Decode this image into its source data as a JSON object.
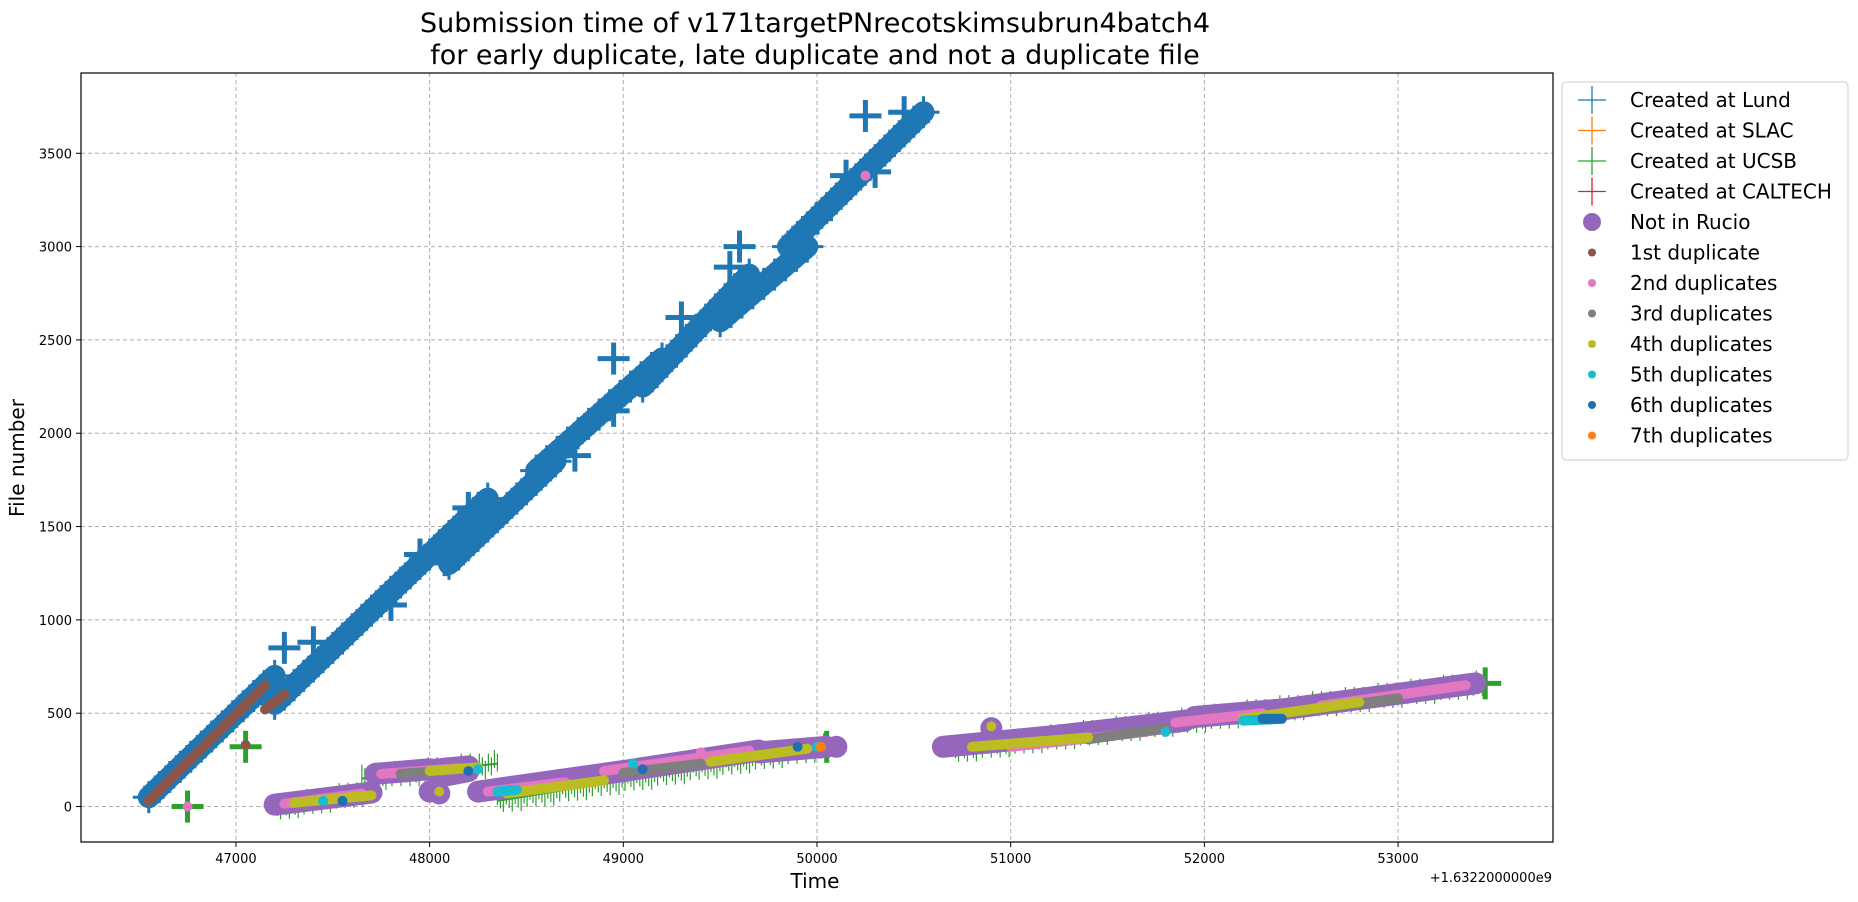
{
  "chart_data": {
    "type": "scatter",
    "title_line1": "Submission time of v171targetPNrecotskimsubrun4batch4",
    "title_line2": "for early duplicate, late duplicate and not a duplicate file",
    "xlabel": "Time",
    "ylabel": "File number",
    "x_offset_label": "+1.6322000000e9",
    "xlim": [
      46200,
      53800
    ],
    "ylim": [
      -190,
      3930
    ],
    "x_ticks": [
      47000,
      48000,
      49000,
      50000,
      51000,
      52000,
      53000
    ],
    "x_tick_labels": [
      "47000",
      "48000",
      "49000",
      "50000",
      "51000",
      "52000",
      "53000"
    ],
    "y_ticks": [
      0,
      500,
      1000,
      1500,
      2000,
      2500,
      3000,
      3500
    ],
    "y_tick_labels": [
      "0",
      "500",
      "1000",
      "1500",
      "2000",
      "2500",
      "3000",
      "3500"
    ],
    "grid": true,
    "legend_position": "outside-top-right",
    "legend": [
      {
        "label": "Created at Lund",
        "marker": "plus",
        "color": "#1f77b4"
      },
      {
        "label": "Created at SLAC",
        "marker": "plus",
        "color": "#ff7f0e"
      },
      {
        "label": "Created at UCSB",
        "marker": "plus",
        "color": "#2ca02c"
      },
      {
        "label": "Created at CALTECH",
        "marker": "plus",
        "color": "#d62728"
      },
      {
        "label": "Not in Rucio",
        "marker": "big-circle",
        "color": "#9467bd"
      },
      {
        "label": "1st duplicate",
        "marker": "circle",
        "color": "#8c564b"
      },
      {
        "label": "2nd duplicates",
        "marker": "circle",
        "color": "#e377c2"
      },
      {
        "label": "3rd duplicates",
        "marker": "circle",
        "color": "#7f7f7f"
      },
      {
        "label": "4th duplicates",
        "marker": "circle",
        "color": "#bcbd22"
      },
      {
        "label": "5th duplicates",
        "marker": "circle",
        "color": "#17becf"
      },
      {
        "label": "6th duplicates",
        "marker": "circle",
        "color": "#1f6fb4"
      },
      {
        "label": "7th duplicates",
        "marker": "circle",
        "color": "#ff7f0e"
      }
    ],
    "series": [
      {
        "name": "Created at Lund",
        "marker": "plus",
        "color": "#1f77b4",
        "segments": [
          [
            [
              46550,
              50
            ],
            [
              47200,
              700
            ]
          ],
          [
            [
              47200,
              550
            ],
            [
              47800,
              1150
            ]
          ],
          [
            [
              47750,
              1100
            ],
            [
              48300,
              1650
            ]
          ],
          [
            [
              48100,
              1300
            ],
            [
              48650,
              1850
            ]
          ],
          [
            [
              48550,
              1800
            ],
            [
              49200,
              2400
            ]
          ],
          [
            [
              49100,
              2250
            ],
            [
              49650,
              2850
            ]
          ],
          [
            [
              49500,
              2600
            ],
            [
              49950,
              3000
            ]
          ],
          [
            [
              49850,
              3000
            ],
            [
              50550,
              3720
            ]
          ]
        ],
        "big_markers": [
          [
            47250,
            850
          ],
          [
            47400,
            880
          ],
          [
            47800,
            1080
          ],
          [
            47950,
            1350
          ],
          [
            48080,
            1320
          ],
          [
            48200,
            1600
          ],
          [
            48750,
            1880
          ],
          [
            48950,
            2120
          ],
          [
            48950,
            2400
          ],
          [
            49300,
            2620
          ],
          [
            49550,
            2890
          ],
          [
            49600,
            3000
          ],
          [
            50000,
            3150
          ],
          [
            50150,
            3380
          ],
          [
            50300,
            3400
          ],
          [
            50250,
            3700
          ],
          [
            50450,
            3720
          ]
        ]
      },
      {
        "name": "Created at UCSB",
        "marker": "plus",
        "color": "#2ca02c",
        "segments": [
          [
            [
              47200,
              -10
            ],
            [
              47700,
              80
            ]
          ],
          [
            [
              47650,
              150
            ],
            [
              48350,
              230
            ]
          ],
          [
            [
              48350,
              30
            ],
            [
              50050,
              320
            ]
          ],
          [
            [
              50700,
              300
            ],
            [
              53450,
              660
            ]
          ]
        ],
        "big_markers": [
          [
            46750,
            0
          ],
          [
            47050,
            320
          ],
          [
            50050,
            320
          ],
          [
            53450,
            660
          ]
        ]
      },
      {
        "name": "Not in Rucio",
        "marker": "big-circle",
        "color": "#9467bd",
        "segments": [
          [
            [
              47200,
              10
            ],
            [
              47700,
              75
            ]
          ],
          [
            [
              47720,
              175
            ],
            [
              48000,
              200
            ]
          ],
          [
            [
              48000,
              195
            ],
            [
              48200,
              215
            ]
          ],
          [
            [
              48050,
              160
            ],
            [
              48200,
              190
            ]
          ],
          [
            [
              48250,
              80
            ],
            [
              49000,
              190
            ]
          ],
          [
            [
              49000,
              190
            ],
            [
              49700,
              300
            ]
          ],
          [
            [
              49700,
              290
            ],
            [
              50050,
              320
            ]
          ],
          [
            [
              50650,
              320
            ],
            [
              51250,
              380
            ]
          ],
          [
            [
              51250,
              380
            ],
            [
              51900,
              460
            ]
          ],
          [
            [
              51950,
              480
            ],
            [
              52400,
              520
            ]
          ],
          [
            [
              52400,
              520
            ],
            [
              53400,
              660
            ]
          ]
        ],
        "points": [
          [
            50100,
            320
          ],
          [
            50900,
            420
          ],
          [
            48050,
            70
          ],
          [
            48000,
            80
          ]
        ]
      },
      {
        "name": "1st duplicate",
        "marker": "circle",
        "color": "#8c564b",
        "segments": [
          [
            [
              46550,
              30
            ],
            [
              47150,
              650
            ]
          ],
          [
            [
              47150,
              520
            ],
            [
              47250,
              600
            ]
          ]
        ],
        "points": [
          [
            47050,
            330
          ]
        ]
      },
      {
        "name": "2nd duplicates",
        "marker": "circle",
        "color": "#e377c2",
        "segments": [
          [
            [
              47250,
              15
            ],
            [
              47650,
              70
            ]
          ],
          [
            [
              47750,
              175
            ],
            [
              48150,
              205
            ]
          ],
          [
            [
              48300,
              80
            ],
            [
              48700,
              130
            ]
          ],
          [
            [
              48900,
              190
            ],
            [
              49650,
              300
            ]
          ],
          [
            [
              51000,
              320
            ],
            [
              51700,
              400
            ]
          ],
          [
            [
              51850,
              450
            ],
            [
              52300,
              500
            ]
          ],
          [
            [
              52600,
              540
            ],
            [
              53350,
              650
            ]
          ]
        ],
        "points": [
          [
            46750,
            0
          ],
          [
            50250,
            3380
          ],
          [
            49400,
            290
          ]
        ]
      },
      {
        "name": "3rd duplicates",
        "marker": "circle",
        "color": "#7f7f7f",
        "segments": [
          [
            [
              47850,
              175
            ],
            [
              48050,
              190
            ]
          ],
          [
            [
              49000,
              180
            ],
            [
              49400,
              230
            ]
          ],
          [
            [
              51400,
              360
            ],
            [
              51800,
              420
            ]
          ],
          [
            [
              52500,
              510
            ],
            [
              53000,
              580
            ]
          ]
        ],
        "points": []
      },
      {
        "name": "4th duplicates",
        "marker": "circle",
        "color": "#bcbd22",
        "segments": [
          [
            [
              47300,
              20
            ],
            [
              47700,
              60
            ]
          ],
          [
            [
              48000,
              190
            ],
            [
              48250,
              210
            ]
          ],
          [
            [
              48400,
              70
            ],
            [
              48900,
              140
            ]
          ],
          [
            [
              49450,
              240
            ],
            [
              49950,
              310
            ]
          ],
          [
            [
              50800,
              320
            ],
            [
              51400,
              370
            ]
          ],
          [
            [
              52200,
              470
            ],
            [
              52800,
              560
            ]
          ]
        ],
        "points": [
          [
            50900,
            430
          ],
          [
            48050,
            80
          ]
        ]
      },
      {
        "name": "5th duplicates",
        "marker": "circle",
        "color": "#17becf",
        "segments": [
          [
            [
              48350,
              80
            ],
            [
              48450,
              90
            ]
          ],
          [
            [
              52200,
              460
            ],
            [
              52400,
              470
            ]
          ]
        ],
        "points": [
          [
            47450,
            30
          ],
          [
            48250,
            200
          ],
          [
            49050,
            230
          ],
          [
            51800,
            400
          ],
          [
            50000,
            320
          ]
        ]
      },
      {
        "name": "6th duplicates",
        "marker": "circle",
        "color": "#1f6fb4",
        "segments": [
          [
            [
              52300,
              470
            ],
            [
              52400,
              470
            ]
          ]
        ],
        "points": [
          [
            47550,
            30
          ],
          [
            48200,
            190
          ],
          [
            49900,
            320
          ],
          [
            49100,
            200
          ]
        ]
      },
      {
        "name": "7th duplicates",
        "marker": "circle",
        "color": "#ff7f0e",
        "segments": [],
        "points": [
          [
            50020,
            320
          ]
        ]
      }
    ]
  }
}
